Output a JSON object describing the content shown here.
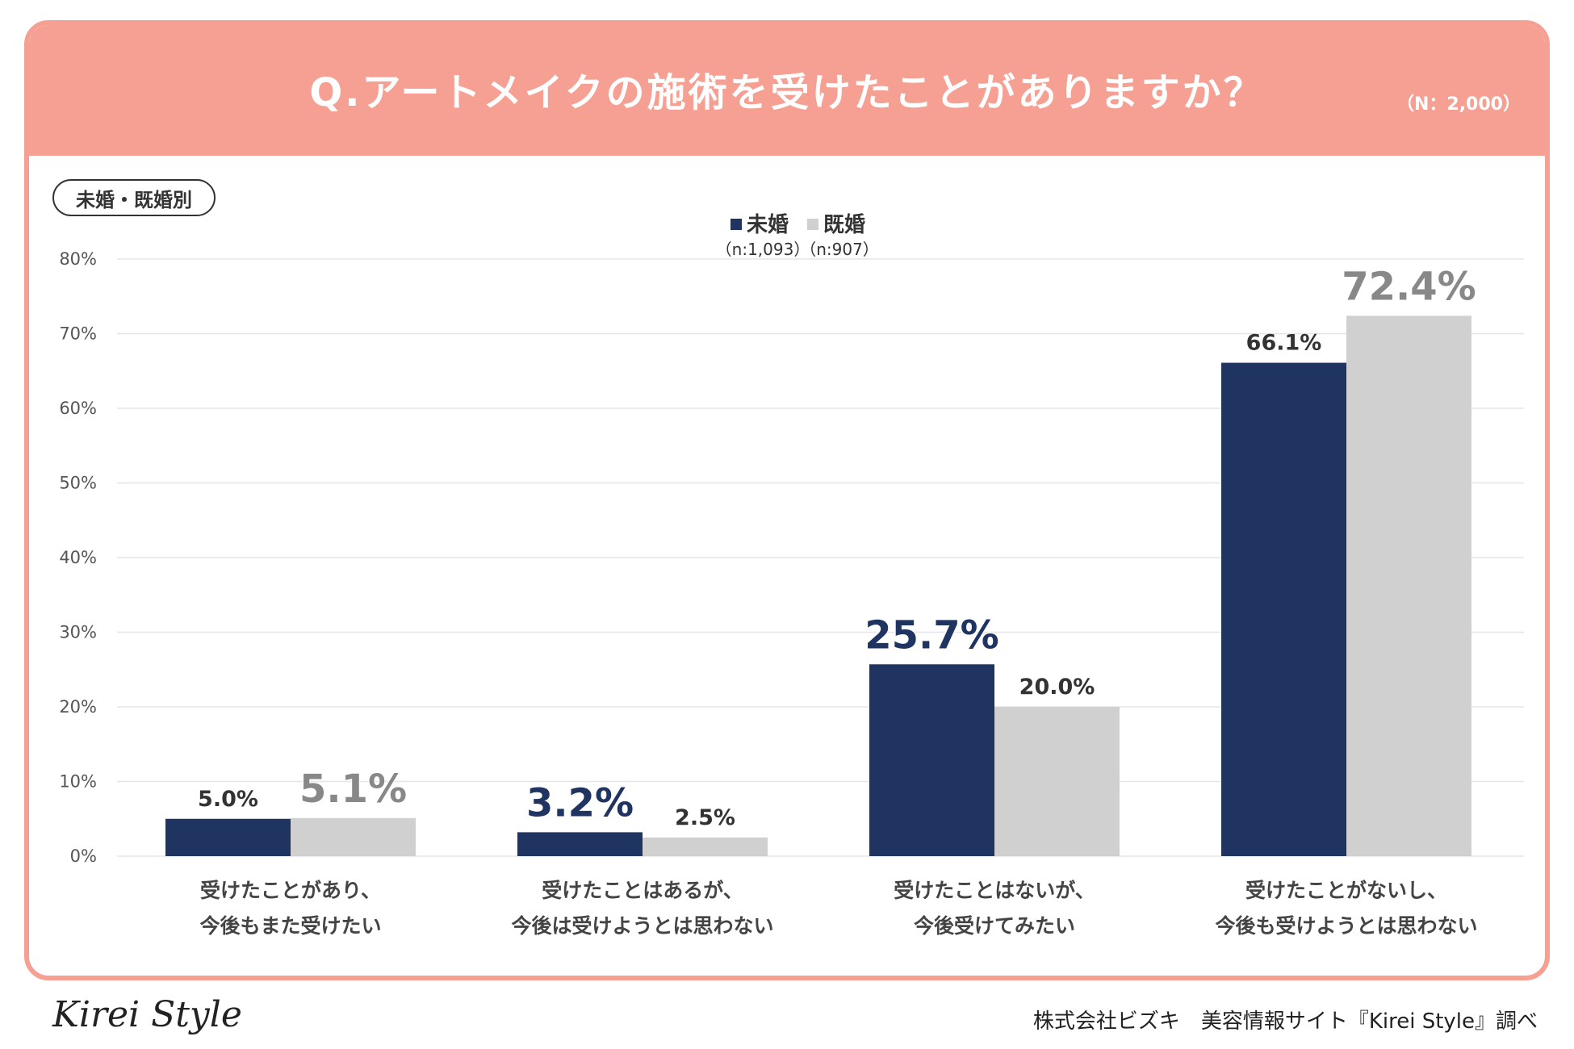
{
  "header": {
    "title": "Q.アートメイクの施術を受けたことがありますか？",
    "sample_size": "（N：2,000）"
  },
  "segment_label": "未婚・既婚別",
  "footer": {
    "logo_text": "Kirei Style",
    "credit": "株式会社ビズキ　美容情報サイト『Kirei Style』調べ"
  },
  "colors": {
    "accent": "#f5a093",
    "unmarried": "#1f3461",
    "married": "#d0d0d0",
    "grid": "#e6e6e6"
  },
  "chart_data": {
    "type": "bar",
    "title": "Q.アートメイクの施術を受けたことがありますか？",
    "xlabel": "",
    "ylabel": "",
    "ylim": [
      0,
      80
    ],
    "yticks": [
      0,
      10,
      20,
      30,
      40,
      50,
      60,
      70,
      80
    ],
    "ytick_suffix": "%",
    "grid": true,
    "legend_position": "top-center",
    "categories": [
      [
        "受けたことがあり、",
        "今後もまた受けたい"
      ],
      [
        "受けたことはあるが、",
        "今後は受けようとは思わない"
      ],
      [
        "受けたことはないが、",
        "今後受けてみたい"
      ],
      [
        "受けたことがないし、",
        "今後も受けようとは思わない"
      ]
    ],
    "series": [
      {
        "name": "未婚",
        "sample": "（n:1,093）",
        "color": "#1f3461",
        "values": [
          5.0,
          3.2,
          25.7,
          66.1
        ],
        "labels": [
          "5.0%",
          "3.2%",
          "25.7%",
          "66.1%"
        ]
      },
      {
        "name": "既婚",
        "sample": "（n:907）",
        "color": "#d0d0d0",
        "values": [
          5.1,
          2.5,
          20.0,
          72.4
        ],
        "labels": [
          "5.1%",
          "2.5%",
          "20.0%",
          "72.4%"
        ]
      }
    ]
  }
}
